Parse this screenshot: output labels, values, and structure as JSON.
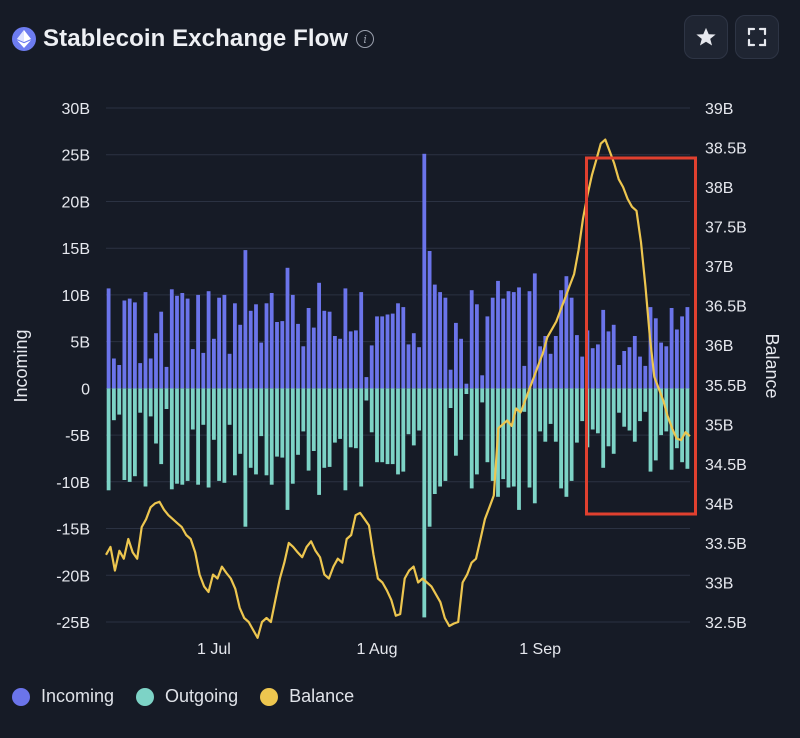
{
  "header": {
    "title": "Stablecoin Exchange Flow",
    "info_glyph": "i",
    "favorite_icon": "star-icon",
    "fullscreen_icon": "fullscreen-icon"
  },
  "legend": [
    {
      "label": "Incoming",
      "color": "#6b74ea"
    },
    {
      "label": "Outgoing",
      "color": "#7dd3c6"
    },
    {
      "label": "Balance",
      "color": "#edc64f"
    }
  ],
  "chart_data": {
    "type": "bar",
    "title": "Stablecoin Exchange Flow",
    "ylabel_left": "Incoming",
    "ylabel_right": "Balance",
    "y_left_ticks": [
      "30B",
      "25B",
      "20B",
      "15B",
      "10B",
      "5B",
      "0",
      "-5B",
      "-10B",
      "-15B",
      "-20B",
      "-25B"
    ],
    "y_right_ticks": [
      "39B",
      "38.5B",
      "38B",
      "37.5B",
      "37B",
      "36.5B",
      "36B",
      "35.5B",
      "35B",
      "34.5B",
      "34B",
      "33.5B",
      "33B",
      "32.5B"
    ],
    "x_tick_labels": [
      {
        "label": "1 Jul",
        "day_index": 20
      },
      {
        "label": "1 Aug",
        "day_index": 51
      },
      {
        "label": "1 Sep",
        "day_index": 82
      }
    ],
    "ylim_left": [
      -25,
      30
    ],
    "ylim_right": [
      32.5,
      39
    ],
    "grid": true,
    "legend_position": "bottom-left",
    "units": "B (billions USD)",
    "incoming": [
      10.7,
      3.2,
      2.5,
      9.4,
      9.6,
      9.2,
      2.7,
      10.3,
      3.2,
      5.9,
      8.2,
      2.3,
      10.6,
      9.9,
      10.2,
      9.6,
      4.2,
      10.0,
      3.8,
      10.4,
      5.3,
      9.7,
      10.0,
      3.7,
      9.1,
      6.8,
      14.8,
      8.3,
      9.0,
      4.9,
      9.1,
      10.2,
      7.1,
      7.2,
      12.9,
      10.0,
      6.9,
      4.5,
      8.6,
      6.5,
      11.3,
      8.3,
      8.2,
      5.6,
      5.3,
      10.7,
      6.1,
      6.2,
      10.3,
      1.2,
      4.6,
      7.7,
      7.7,
      7.9,
      8.0,
      9.1,
      8.7,
      4.7,
      5.9,
      4.4,
      25.1,
      14.7,
      11.1,
      10.3,
      9.7,
      2.0,
      7.0,
      5.3,
      0.5,
      10.5,
      9.0,
      1.4,
      7.7,
      9.7,
      11.5,
      9.6,
      10.4,
      10.3,
      10.8,
      2.4,
      10.4,
      12.3,
      4.5,
      5.6,
      3.7,
      5.6,
      10.5,
      12.0,
      9.7,
      5.7,
      3.4,
      6.2,
      4.3,
      4.7,
      8.4,
      6.1,
      6.8,
      2.5,
      4.0,
      4.4,
      5.6,
      3.4,
      2.4,
      8.7,
      7.5,
      4.9,
      4.5,
      8.6,
      6.3,
      7.7,
      8.7
    ],
    "outgoing": [
      -10.9,
      -3.4,
      -2.8,
      -9.8,
      -10.0,
      -9.4,
      -2.6,
      -10.5,
      -3.0,
      -5.9,
      -8.1,
      -2.2,
      -10.8,
      -10.2,
      -10.3,
      -9.9,
      -4.4,
      -10.3,
      -3.9,
      -10.6,
      -5.5,
      -9.9,
      -10.1,
      -3.9,
      -9.3,
      -7.0,
      -14.8,
      -8.5,
      -9.2,
      -5.1,
      -9.3,
      -10.3,
      -7.3,
      -7.4,
      -13.0,
      -10.2,
      -7.1,
      -4.6,
      -8.8,
      -6.7,
      -11.4,
      -8.5,
      -8.4,
      -5.8,
      -5.4,
      -10.9,
      -6.3,
      -6.4,
      -10.5,
      -1.3,
      -4.7,
      -7.9,
      -7.9,
      -8.1,
      -8.1,
      -9.2,
      -8.9,
      -4.9,
      -6.1,
      -4.5,
      -24.5,
      -14.8,
      -11.3,
      -10.5,
      -9.9,
      -2.1,
      -7.2,
      -5.5,
      -0.6,
      -10.7,
      -9.2,
      -1.5,
      -7.9,
      -9.9,
      -11.6,
      -9.7,
      -10.6,
      -10.5,
      -13.0,
      -2.5,
      -10.6,
      -12.3,
      -4.6,
      -5.7,
      -3.8,
      -5.7,
      -10.7,
      -11.6,
      -9.9,
      -5.8,
      -3.5,
      -6.3,
      -4.4,
      -4.8,
      -8.5,
      -6.2,
      -7.0,
      -2.6,
      -4.1,
      -4.5,
      -5.7,
      -3.5,
      -2.5,
      -8.9,
      -7.7,
      -5.0,
      -4.6,
      -8.7,
      -6.4,
      -7.9,
      -8.6
    ],
    "balance_points": [
      [
        0,
        33.35
      ],
      [
        1,
        33.45
      ],
      [
        2,
        33.15
      ],
      [
        3,
        33.4
      ],
      [
        4,
        33.3
      ],
      [
        5,
        33.55
      ],
      [
        6,
        33.38
      ],
      [
        7,
        33.3
      ],
      [
        8,
        33.7
      ],
      [
        9,
        33.8
      ],
      [
        10,
        33.95
      ],
      [
        11,
        34
      ],
      [
        12,
        34.02
      ],
      [
        13,
        33.92
      ],
      [
        14,
        33.85
      ],
      [
        15,
        33.8
      ],
      [
        16,
        33.75
      ],
      [
        17,
        33.7
      ],
      [
        18,
        33.6
      ],
      [
        19,
        33.55
      ],
      [
        20,
        33.38
      ],
      [
        21,
        33.1
      ],
      [
        22,
        32.95
      ],
      [
        23,
        32.88
      ],
      [
        24,
        33.1
      ],
      [
        25,
        33.05
      ],
      [
        26,
        33.2
      ],
      [
        27,
        33.12
      ],
      [
        28,
        33.05
      ],
      [
        29,
        32.92
      ],
      [
        30,
        32.68
      ],
      [
        31,
        32.55
      ],
      [
        32,
        32.5
      ],
      [
        33,
        32.4
      ],
      [
        34,
        32.3
      ],
      [
        35,
        32.5
      ],
      [
        36,
        32.55
      ],
      [
        37,
        32.5
      ],
      [
        38,
        32.78
      ],
      [
        39,
        33.05
      ],
      [
        40,
        33.25
      ],
      [
        41,
        33.5
      ],
      [
        42,
        33.45
      ],
      [
        43,
        33.38
      ],
      [
        44,
        33.32
      ],
      [
        45,
        33.45
      ],
      [
        46,
        33.52
      ],
      [
        47,
        33.4
      ],
      [
        48,
        33.32
      ],
      [
        49,
        33.1
      ],
      [
        50,
        33.05
      ],
      [
        51,
        33.2
      ],
      [
        52,
        33.3
      ],
      [
        53,
        33.25
      ],
      [
        54,
        33.55
      ],
      [
        55,
        33.6
      ],
      [
        56,
        33.85
      ],
      [
        57,
        33.88
      ],
      [
        58,
        33.8
      ],
      [
        59,
        33.72
      ],
      [
        60,
        33.35
      ],
      [
        61,
        33.05
      ],
      [
        62,
        33.0
      ],
      [
        63,
        32.9
      ],
      [
        64,
        32.78
      ],
      [
        65,
        32.58
      ],
      [
        66,
        32.6
      ],
      [
        67,
        33.05
      ],
      [
        68,
        33.15
      ],
      [
        69,
        33.2
      ],
      [
        70,
        33.0
      ],
      [
        71,
        33.05
      ],
      [
        72,
        33.0
      ],
      [
        73,
        32.95
      ],
      [
        74,
        32.85
      ],
      [
        75,
        32.75
      ],
      [
        76,
        32.55
      ],
      [
        77,
        32.45
      ],
      [
        78,
        32.48
      ],
      [
        79,
        32.5
      ],
      [
        80,
        33.0
      ],
      [
        81,
        33.1
      ],
      [
        82,
        33.25
      ],
      [
        83,
        33.3
      ],
      [
        84,
        33.55
      ],
      [
        85,
        33.8
      ],
      [
        86,
        33.95
      ],
      [
        87,
        34.1
      ],
      [
        88,
        34.95
      ],
      [
        89,
        35.0
      ],
      [
        90,
        35.05
      ],
      [
        91,
        34.98
      ],
      [
        92,
        35.2
      ],
      [
        93,
        35.15
      ],
      [
        94,
        35.3
      ],
      [
        95,
        35.45
      ],
      [
        96,
        35.6
      ],
      [
        97,
        35.75
      ],
      [
        98,
        35.9
      ],
      [
        99,
        36.1
      ],
      [
        100,
        36.2
      ],
      [
        101,
        36.3
      ],
      [
        102,
        36.45
      ],
      [
        103,
        36.6
      ],
      [
        104,
        36.75
      ],
      [
        105,
        36.9
      ],
      [
        106,
        37.2
      ],
      [
        107,
        37.6
      ],
      [
        108,
        37.9
      ],
      [
        109,
        38.15
      ],
      [
        110,
        38.35
      ],
      [
        111,
        38.55
      ],
      [
        112,
        38.6
      ],
      [
        113,
        38.45
      ],
      [
        114,
        38.3
      ],
      [
        115,
        38.1
      ],
      [
        116,
        38.0
      ],
      [
        117,
        37.85
      ],
      [
        118,
        37.75
      ],
      [
        119,
        37.7
      ],
      [
        120,
        37.3
      ],
      [
        121,
        36.75
      ],
      [
        122,
        36.1
      ],
      [
        123,
        35.6
      ],
      [
        124,
        35.45
      ],
      [
        125,
        35.3
      ],
      [
        126,
        35.1
      ],
      [
        127,
        34.95
      ],
      [
        128,
        34.82
      ],
      [
        129,
        34.8
      ],
      [
        130,
        34.9
      ],
      [
        131,
        34.85
      ]
    ]
  }
}
